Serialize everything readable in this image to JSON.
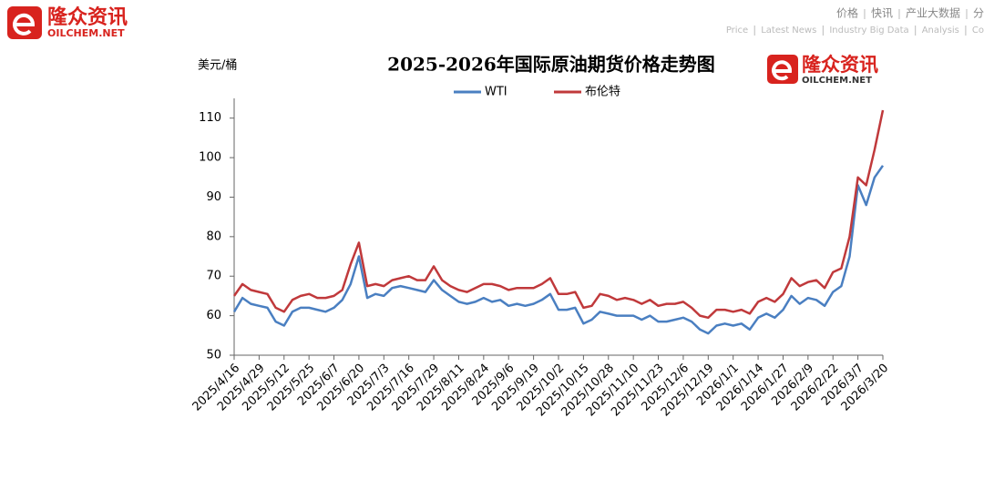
{
  "header": {
    "brand": "隆众资讯",
    "site": "OILCHEM.NET",
    "nav_cn": [
      "价格",
      "快讯",
      "产业大数据",
      "分"
    ],
    "nav_en": [
      "Price",
      "Latest News",
      "Industry Big Data",
      "Analysis",
      "Co"
    ]
  },
  "chart_data": {
    "type": "line",
    "title": "2025-2026年国际原油期货价格走势图",
    "y_label": "美元/桶",
    "categories": [
      "2025/4/16",
      null,
      null,
      "2025/4/29",
      null,
      null,
      "2025/5/12",
      null,
      null,
      "2025/5/25",
      null,
      null,
      "2025/6/7",
      null,
      null,
      "2025/6/20",
      null,
      null,
      "2025/7/3",
      null,
      null,
      "2025/7/16",
      null,
      null,
      "2025/7/29",
      null,
      null,
      "2025/8/11",
      null,
      null,
      "2025/8/24",
      null,
      null,
      "2025/9/6",
      null,
      null,
      "2025/9/19",
      null,
      null,
      "2025/10/2",
      null,
      null,
      "2025/10/15",
      null,
      null,
      "2025/10/28",
      null,
      null,
      "2025/11/10",
      null,
      null,
      "2025/11/23",
      null,
      null,
      "2025/12/6",
      null,
      null,
      "2025/12/19",
      null,
      null,
      "2026/1/1",
      null,
      null,
      "2026/1/14",
      null,
      null,
      "2026/1/27",
      null,
      null,
      "2026/2/9",
      null,
      null,
      "2026/2/22",
      null,
      null,
      "2026/3/7",
      null,
      null,
      "2026/3/20"
    ],
    "series": [
      {
        "name": "WTI",
        "color": "#4a7fc1",
        "values": [
          61,
          64.5,
          63,
          62.5,
          62,
          58.5,
          57.5,
          61,
          62,
          62,
          61.5,
          61,
          62,
          64,
          68,
          75,
          64.5,
          65.5,
          65,
          67,
          67.5,
          67,
          66.5,
          66,
          69,
          66.5,
          65,
          63.5,
          63,
          63.5,
          64.5,
          63.5,
          64,
          62.5,
          63,
          62.5,
          63,
          64,
          65.5,
          61.5,
          61.5,
          62,
          58,
          59,
          61,
          60.5,
          60,
          60,
          60,
          59,
          60,
          58.5,
          58.5,
          59,
          59.5,
          58.5,
          56.5,
          55.5,
          57.5,
          58,
          57.5,
          58,
          56.5,
          59.5,
          60.5,
          59.5,
          61.5,
          65,
          63,
          64.5,
          64,
          62.5,
          66,
          67.5,
          75,
          93,
          88,
          95,
          98
        ]
      },
      {
        "name": "布伦特",
        "color": "#c0393b",
        "values": [
          65,
          68,
          66.5,
          66,
          65.5,
          62,
          61,
          64,
          65,
          65.5,
          64.5,
          64.5,
          65,
          66.5,
          73,
          78.5,
          67.5,
          68,
          67.5,
          69,
          69.5,
          70,
          69,
          69,
          72.5,
          69,
          67.5,
          66.5,
          66,
          67,
          68,
          68,
          67.5,
          66.5,
          67,
          67,
          67,
          68,
          69.5,
          65.5,
          65.5,
          66,
          62,
          62.5,
          65.5,
          65,
          64,
          64.5,
          64,
          63,
          64,
          62.5,
          63,
          63,
          63.5,
          62,
          60,
          59.5,
          61.5,
          61.5,
          61,
          61.5,
          60.5,
          63.5,
          64.5,
          63.5,
          65.5,
          69.5,
          67.5,
          68.5,
          69,
          67,
          71,
          72,
          80,
          95,
          93,
          102,
          112
        ]
      }
    ],
    "ylim": [
      50,
      115
    ],
    "yticks": [
      50,
      60,
      70,
      80,
      90,
      100,
      110
    ],
    "grid": false
  }
}
